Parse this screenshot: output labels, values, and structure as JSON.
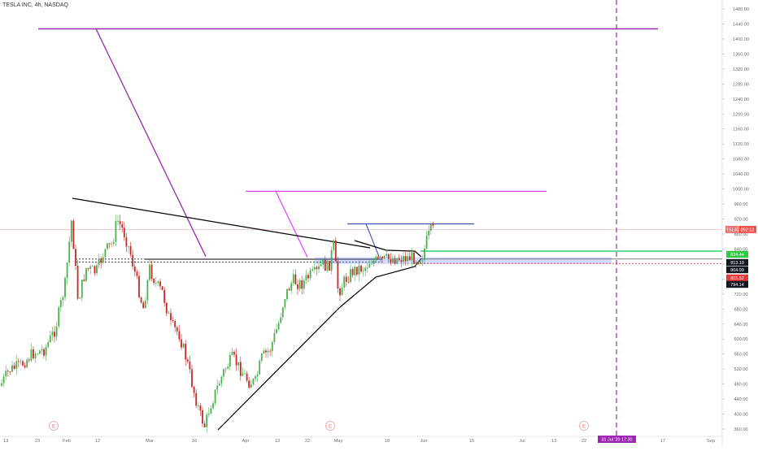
{
  "chart_data": {
    "type": "candlestick",
    "title": "TESLA INC, 4h, NASDAQ",
    "symbol_badge": "TSLA",
    "last_price_badge": "892.12",
    "ylim": [
      340,
      1500
    ],
    "y_ticks": [
      360,
      400,
      440,
      480,
      520,
      560,
      600,
      640,
      680,
      720,
      760,
      800,
      840,
      880,
      920,
      960,
      1000,
      1040,
      1080,
      1120,
      1160,
      1200,
      1240,
      1280,
      1320,
      1360,
      1400,
      1440,
      1480
    ],
    "y_tick_labels": [
      "360.00",
      "400.00",
      "440.00",
      "480.00",
      "520.00",
      "560.00",
      "600.00",
      "640.00",
      "680.00",
      "720.00",
      "760.00",
      "800.00",
      "840.00",
      "880.00",
      "920.00",
      "960.00",
      "1000.00",
      "1040.00",
      "1080.00",
      "1120.00",
      "1160.00",
      "1200.00",
      "1240.00",
      "1280.00",
      "1320.00",
      "1360.00",
      "1400.00",
      "1440.00",
      "1480.00"
    ],
    "x_tick_labels": [
      "13",
      "23",
      "Feb",
      "12",
      "Mar",
      "16",
      "Apr",
      "13",
      "22",
      "May",
      "18",
      "Jun",
      "15",
      "Jul",
      "13",
      "22",
      "17",
      "Sep"
    ],
    "cursor_time_label": "31 Jul '20   17:30",
    "price_badges": [
      {
        "price": 834.44,
        "label": "834.44",
        "color": "#2ecc40"
      },
      {
        "price": 813.1,
        "label": "813.10",
        "color": "#131722"
      },
      {
        "price": 804.99,
        "label": "804.99",
        "color": "#131722"
      },
      {
        "price": 801.52,
        "label": "801.52",
        "color": "#e53935"
      },
      {
        "price": 794.14,
        "label": "794.14",
        "color": "#131722"
      }
    ],
    "earnings_markers": [
      "E",
      "E",
      "E"
    ],
    "series": [
      {
        "name": "",
        "up_color": "#4caf50",
        "down_color": "#c62828"
      }
    ],
    "colors": {
      "purple": "#9c27b0",
      "magenta": "#e040fb",
      "blue": "#3f51b5",
      "green": "#00c853",
      "black": "#000000",
      "price_line": "#e57373",
      "cursor": "#9c27b0"
    },
    "levels": {
      "purple_top": 1427,
      "magenta_mid": 994,
      "blue_top": 907,
      "green_line": 834.44,
      "black_hline": 820,
      "dashed_1": 813.1,
      "dashed_2": 804.99,
      "red_dotted": 801.52
    }
  }
}
